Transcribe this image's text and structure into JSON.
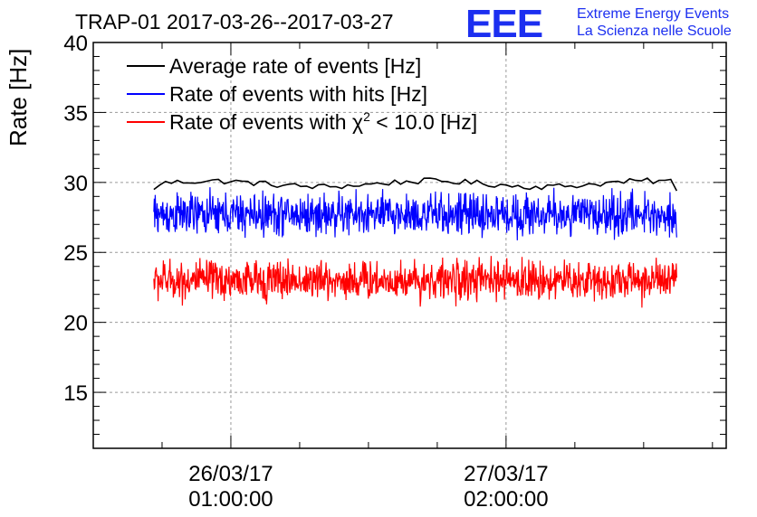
{
  "chart_data": {
    "type": "line",
    "title": "TRAP-01 2017-03-26--2017-03-27",
    "ylabel": "Rate [Hz]",
    "xlabel": "",
    "ylim": [
      11,
      40
    ],
    "yticks": [
      15,
      20,
      25,
      30,
      35,
      40
    ],
    "xlim_hours": [
      0.5,
      2.8
    ],
    "xticks": [
      {
        "hours": 1.0,
        "date": "26/03/17",
        "time": "01:00:00"
      },
      {
        "hours": 2.0,
        "date": "27/03/17",
        "time": "02:00:00"
      }
    ],
    "grid": true,
    "legend_position": "top-left",
    "series": [
      {
        "name": "Average rate of events [Hz]",
        "color": "#000000",
        "x_start": 0.72,
        "x_end": 2.62,
        "mean": 29.9,
        "amplitude": 0.35,
        "points": 90,
        "style": "smooth"
      },
      {
        "name": "Rate of events with hits [Hz]",
        "color": "#0000ff",
        "x_start": 0.72,
        "x_end": 2.62,
        "mean": 27.7,
        "amplitude": 1.6,
        "points": 1100,
        "style": "noisy"
      },
      {
        "name": "Rate of events with χ² < 10.0 [Hz]",
        "color": "#ff0000",
        "x_start": 0.72,
        "x_end": 2.62,
        "mean": 23.0,
        "amplitude": 1.5,
        "points": 1100,
        "style": "noisy"
      }
    ],
    "legend": {
      "average": "Average rate of events [Hz]",
      "hits_label": "Rate of events with hits [Hz]",
      "chi_prefix": "Rate of events with ",
      "chi_symbol": "χ",
      "chi_exp": "2",
      "chi_suffix": " < 10.0 [Hz]"
    }
  },
  "logo": {
    "letters": "EEE",
    "line1": "Extreme Energy Events",
    "line2": "La Scienza nelle Scuole",
    "color": "#1c2ff0"
  }
}
